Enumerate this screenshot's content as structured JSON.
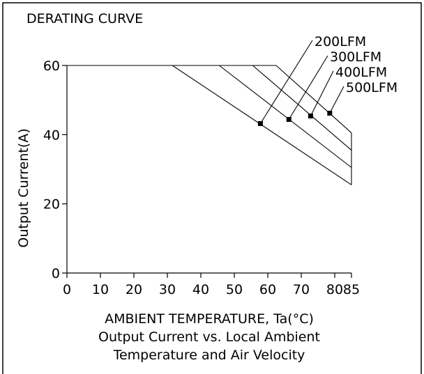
{
  "chart_data": {
    "type": "line",
    "title": "DERATING CURVE",
    "xlabel": "AMBIENT TEMPERATURE, Ta(°C)",
    "ylabel": "Output Current(A)",
    "caption_lines": [
      "Output Current vs. Local Ambient",
      "Temperature and Air Velocity"
    ],
    "xlim": [
      0,
      85
    ],
    "ylim": [
      0,
      60
    ],
    "x_ticks": [
      "0",
      "10",
      "20",
      "30",
      "40",
      "50",
      "60",
      "70",
      "80",
      "85"
    ],
    "y_ticks": [
      "0",
      "20",
      "40",
      "60"
    ],
    "grid": false,
    "series": [
      {
        "name": "200LFM",
        "x": [
          0,
          31.5,
          85
        ],
        "y": [
          60,
          60,
          25.5
        ],
        "marker": {
          "x": 57.8,
          "y": 43.2
        }
      },
      {
        "name": "300LFM",
        "x": [
          0,
          45.5,
          85
        ],
        "y": [
          60,
          60,
          30.5
        ],
        "marker": {
          "x": 66.3,
          "y": 44.4
        }
      },
      {
        "name": "400LFM",
        "x": [
          0,
          55.5,
          85
        ],
        "y": [
          60,
          60,
          35.5
        ],
        "marker": {
          "x": 72.8,
          "y": 45.4
        }
      },
      {
        "name": "500LFM",
        "x": [
          0,
          62.5,
          85
        ],
        "y": [
          60,
          60,
          40.5
        ],
        "marker": {
          "x": 78.5,
          "y": 46.2
        }
      }
    ]
  }
}
